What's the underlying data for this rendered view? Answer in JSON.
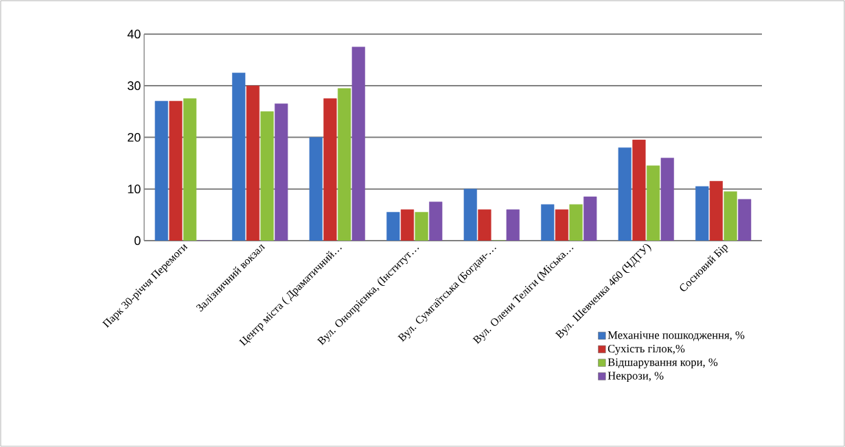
{
  "chart_data": {
    "type": "bar",
    "categories": [
      "Парк 30-річчя Перемоги",
      "Залізничний вокзал",
      "Центр міста ( Драматичний…",
      "Вул. Онопрієнка, (Інститут…",
      "Вул. Сумгаїтська (Богдан-…",
      "Вул. Олени Теліги (Міська…",
      "Вул. Шевченка 460 (ЧДТУ)",
      "Сосновий Бір"
    ],
    "series": [
      {
        "name": "Механічне пошкодження, %",
        "color": "#3a74c4",
        "values": [
          27,
          32.5,
          20,
          5.5,
          10,
          7,
          18,
          10.5
        ]
      },
      {
        "name": "Сухість гілок,%",
        "color": "#c8302c",
        "values": [
          27,
          30,
          27.5,
          6,
          6,
          6,
          19.5,
          11.5
        ]
      },
      {
        "name": "Відшарування кори, %",
        "color": "#8dbf3c",
        "values": [
          27.5,
          25,
          29.5,
          5.5,
          0,
          7,
          14.5,
          9.5
        ]
      },
      {
        "name": "Некрози, %",
        "color": "#7b52ab",
        "values": [
          0,
          26.5,
          37.5,
          7.5,
          6,
          8.5,
          16,
          8
        ]
      }
    ],
    "ylim": [
      0,
      40
    ],
    "yticks": [
      0,
      10,
      20,
      30,
      40
    ],
    "grid": "y",
    "legend": "bottom right"
  }
}
